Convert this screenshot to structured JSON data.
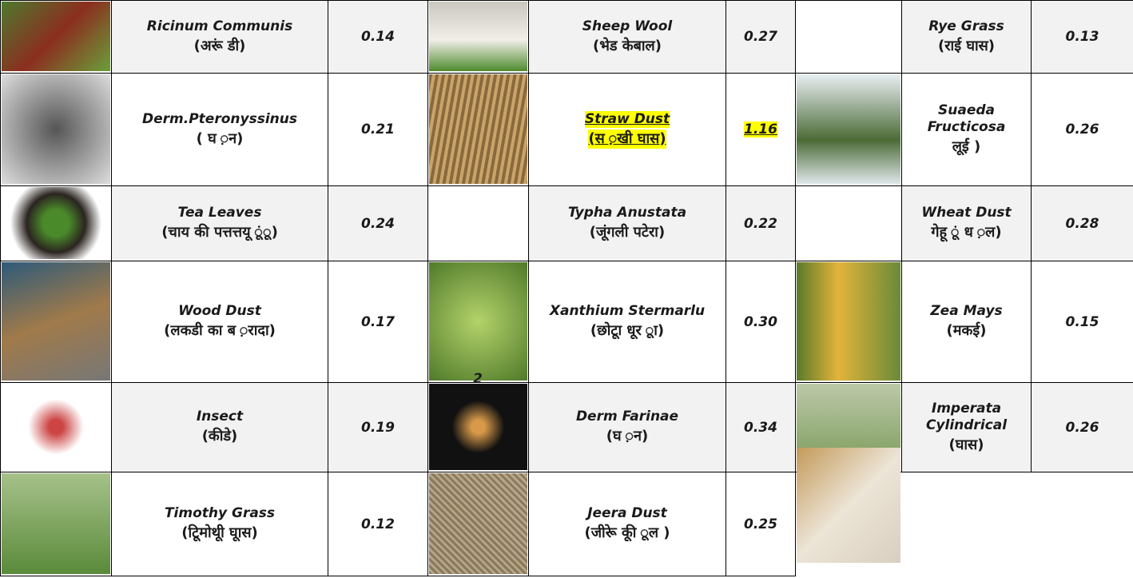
{
  "table": {
    "rows": [
      {
        "items": [
          {
            "name": "Ricinum Communis",
            "hindi": "(अरूं डी)",
            "value": "0.14"
          },
          {
            "name": "Sheep Wool",
            "hindi": "(भेड केबाल)",
            "value": "0.27"
          },
          {
            "name": "Rye Grass",
            "hindi": "(राई घास)",
            "value": "0.13"
          }
        ]
      },
      {
        "items": [
          {
            "name": "Derm.Pteronyssinus",
            "hindi": "( घ ़न)",
            "value": "0.21"
          },
          {
            "name": "Straw Dust",
            "hindi": "(स ़खी घास)",
            "value": "1.16",
            "highlight": true
          },
          {
            "name": "Suaeda Fructicosa",
            "hindi": "लूर्ई )",
            "value": "0.26"
          }
        ]
      },
      {
        "items": [
          {
            "name": "Tea Leaves",
            "hindi": "(चाय की पत्तत्तयू ूंू)",
            "value": "0.24"
          },
          {
            "name": "Typha Anustata",
            "hindi": "(जूंगली पटेरा)",
            "value": "0.22"
          },
          {
            "name": "Wheat Dust",
            "hindi": "गेहू ूं ध ़ल)",
            "value": "0.28"
          }
        ]
      },
      {
        "items": [
          {
            "name": "Wood Dust",
            "hindi": "(लकडी का ब ़रादा)",
            "value": "0.17"
          },
          {
            "name": "Xanthium Stermarlu",
            "hindi": "(छोटूा धूर ूा)",
            "value": "0.30"
          },
          {
            "name": "Zea Mays",
            "hindi": "(मकई)",
            "value": "0.15"
          }
        ]
      },
      {
        "items": [
          {
            "name": "Insect",
            "hindi": "(कीडे)",
            "value": "0.19"
          },
          {
            "name": "Derm Farinae",
            "hindi": "(घ ़न)",
            "value": "0.34",
            "image_note": "2"
          },
          {
            "name": "Imperata Cylindrical",
            "hindi": "(घास)",
            "value": "0.26"
          }
        ]
      },
      {
        "items": [
          {
            "name": "Timothy Grass",
            "hindi": "(टिूमोथूी घूास)",
            "value": "0.12"
          },
          {
            "name": "Jeera Dust",
            "hindi": "(जीरूे कूी ूल )",
            "value": "0.25"
          }
        ]
      }
    ]
  }
}
